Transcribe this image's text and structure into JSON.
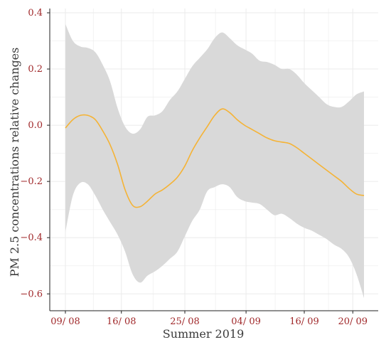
{
  "chart_data": {
    "type": "line",
    "title": "",
    "xlabel": "Summer 2019",
    "ylabel": "PM 2.5 concentrations relative changes",
    "x_ticks": [
      "09/ 08",
      "16/ 08",
      "25/ 08",
      "04/ 09",
      "16/ 09",
      "20/ 09"
    ],
    "y_ticks": [
      "0.4",
      "0.2",
      "0.0",
      "−0.2",
      "−0.4",
      "−0.6"
    ],
    "y_tick_values": [
      0.4,
      0.2,
      0.0,
      -0.2,
      -0.4,
      -0.6
    ],
    "ylim": [
      -0.66,
      0.4
    ],
    "grid": true,
    "series": [
      {
        "kind": "mean-line",
        "x": [
          0,
          1,
          2,
          3,
          4,
          5,
          6,
          7,
          8,
          9,
          10,
          11,
          12,
          13,
          14,
          15,
          16,
          17,
          18,
          19,
          20,
          21,
          22,
          23,
          24,
          25,
          26,
          27,
          28,
          29,
          30,
          31,
          32,
          33,
          34,
          35,
          36,
          37,
          38,
          39,
          40
        ],
        "values": [
          -0.01,
          0.02,
          0.035,
          0.035,
          0.02,
          -0.02,
          -0.07,
          -0.14,
          -0.23,
          -0.285,
          -0.29,
          -0.27,
          -0.245,
          -0.23,
          -0.21,
          -0.185,
          -0.145,
          -0.09,
          -0.045,
          -0.005,
          0.035,
          0.058,
          0.045,
          0.02,
          0.0,
          -0.015,
          -0.03,
          -0.045,
          -0.055,
          -0.06,
          -0.065,
          -0.08,
          -0.1,
          -0.12,
          -0.14,
          -0.16,
          -0.18,
          -0.2,
          -0.225,
          -0.245,
          -0.25
        ],
        "color": "#f5b335"
      },
      {
        "kind": "band",
        "x": [
          0,
          1,
          2,
          3,
          4,
          5,
          6,
          7,
          8,
          9,
          10,
          11,
          12,
          13,
          14,
          15,
          16,
          17,
          18,
          19,
          20,
          21,
          22,
          23,
          24,
          25,
          26,
          27,
          28,
          29,
          30,
          31,
          32,
          33,
          34,
          35,
          36,
          37,
          38,
          39,
          40
        ],
        "upper": [
          0.36,
          0.3,
          0.28,
          0.275,
          0.26,
          0.215,
          0.155,
          0.06,
          -0.005,
          -0.03,
          -0.015,
          0.03,
          0.035,
          0.05,
          0.09,
          0.12,
          0.165,
          0.21,
          0.24,
          0.27,
          0.31,
          0.33,
          0.31,
          0.285,
          0.27,
          0.255,
          0.23,
          0.225,
          0.215,
          0.2,
          0.2,
          0.18,
          0.15,
          0.125,
          0.1,
          0.075,
          0.065,
          0.065,
          0.085,
          0.11,
          0.12
        ],
        "lower": [
          -0.38,
          -0.25,
          -0.205,
          -0.21,
          -0.25,
          -0.3,
          -0.345,
          -0.39,
          -0.45,
          -0.53,
          -0.56,
          -0.535,
          -0.52,
          -0.5,
          -0.475,
          -0.45,
          -0.395,
          -0.34,
          -0.3,
          -0.235,
          -0.22,
          -0.21,
          -0.22,
          -0.255,
          -0.27,
          -0.275,
          -0.28,
          -0.3,
          -0.32,
          -0.315,
          -0.33,
          -0.35,
          -0.365,
          -0.375,
          -0.39,
          -0.405,
          -0.425,
          -0.44,
          -0.47,
          -0.53,
          -0.615
        ],
        "color": "#d9d9d9"
      }
    ]
  }
}
